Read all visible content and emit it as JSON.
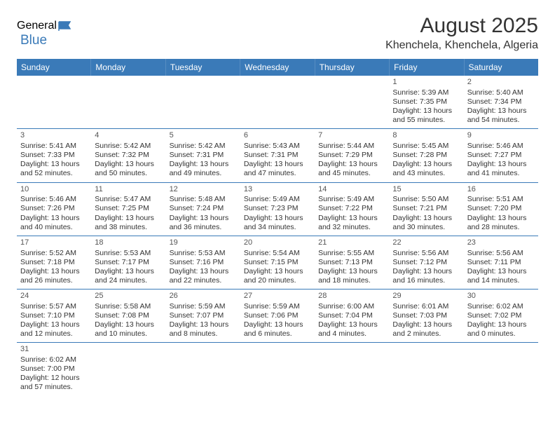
{
  "logo": {
    "part1": "General",
    "part2": "Blue"
  },
  "title": "August 2025",
  "location": "Khenchela, Khenchela, Algeria",
  "colors": {
    "header_bg": "#3a7ab8",
    "header_text": "#ffffff",
    "row_border": "#3a7ab8",
    "body_text": "#333333",
    "page_bg": "#ffffff"
  },
  "day_headers": [
    "Sunday",
    "Monday",
    "Tuesday",
    "Wednesday",
    "Thursday",
    "Friday",
    "Saturday"
  ],
  "weeks": [
    [
      {
        "empty": true
      },
      {
        "empty": true
      },
      {
        "empty": true
      },
      {
        "empty": true
      },
      {
        "empty": true
      },
      {
        "num": "1",
        "sunrise": "Sunrise: 5:39 AM",
        "sunset": "Sunset: 7:35 PM",
        "daylight1": "Daylight: 13 hours",
        "daylight2": "and 55 minutes."
      },
      {
        "num": "2",
        "sunrise": "Sunrise: 5:40 AM",
        "sunset": "Sunset: 7:34 PM",
        "daylight1": "Daylight: 13 hours",
        "daylight2": "and 54 minutes."
      }
    ],
    [
      {
        "num": "3",
        "sunrise": "Sunrise: 5:41 AM",
        "sunset": "Sunset: 7:33 PM",
        "daylight1": "Daylight: 13 hours",
        "daylight2": "and 52 minutes."
      },
      {
        "num": "4",
        "sunrise": "Sunrise: 5:42 AM",
        "sunset": "Sunset: 7:32 PM",
        "daylight1": "Daylight: 13 hours",
        "daylight2": "and 50 minutes."
      },
      {
        "num": "5",
        "sunrise": "Sunrise: 5:42 AM",
        "sunset": "Sunset: 7:31 PM",
        "daylight1": "Daylight: 13 hours",
        "daylight2": "and 49 minutes."
      },
      {
        "num": "6",
        "sunrise": "Sunrise: 5:43 AM",
        "sunset": "Sunset: 7:31 PM",
        "daylight1": "Daylight: 13 hours",
        "daylight2": "and 47 minutes."
      },
      {
        "num": "7",
        "sunrise": "Sunrise: 5:44 AM",
        "sunset": "Sunset: 7:29 PM",
        "daylight1": "Daylight: 13 hours",
        "daylight2": "and 45 minutes."
      },
      {
        "num": "8",
        "sunrise": "Sunrise: 5:45 AM",
        "sunset": "Sunset: 7:28 PM",
        "daylight1": "Daylight: 13 hours",
        "daylight2": "and 43 minutes."
      },
      {
        "num": "9",
        "sunrise": "Sunrise: 5:46 AM",
        "sunset": "Sunset: 7:27 PM",
        "daylight1": "Daylight: 13 hours",
        "daylight2": "and 41 minutes."
      }
    ],
    [
      {
        "num": "10",
        "sunrise": "Sunrise: 5:46 AM",
        "sunset": "Sunset: 7:26 PM",
        "daylight1": "Daylight: 13 hours",
        "daylight2": "and 40 minutes."
      },
      {
        "num": "11",
        "sunrise": "Sunrise: 5:47 AM",
        "sunset": "Sunset: 7:25 PM",
        "daylight1": "Daylight: 13 hours",
        "daylight2": "and 38 minutes."
      },
      {
        "num": "12",
        "sunrise": "Sunrise: 5:48 AM",
        "sunset": "Sunset: 7:24 PM",
        "daylight1": "Daylight: 13 hours",
        "daylight2": "and 36 minutes."
      },
      {
        "num": "13",
        "sunrise": "Sunrise: 5:49 AM",
        "sunset": "Sunset: 7:23 PM",
        "daylight1": "Daylight: 13 hours",
        "daylight2": "and 34 minutes."
      },
      {
        "num": "14",
        "sunrise": "Sunrise: 5:49 AM",
        "sunset": "Sunset: 7:22 PM",
        "daylight1": "Daylight: 13 hours",
        "daylight2": "and 32 minutes."
      },
      {
        "num": "15",
        "sunrise": "Sunrise: 5:50 AM",
        "sunset": "Sunset: 7:21 PM",
        "daylight1": "Daylight: 13 hours",
        "daylight2": "and 30 minutes."
      },
      {
        "num": "16",
        "sunrise": "Sunrise: 5:51 AM",
        "sunset": "Sunset: 7:20 PM",
        "daylight1": "Daylight: 13 hours",
        "daylight2": "and 28 minutes."
      }
    ],
    [
      {
        "num": "17",
        "sunrise": "Sunrise: 5:52 AM",
        "sunset": "Sunset: 7:18 PM",
        "daylight1": "Daylight: 13 hours",
        "daylight2": "and 26 minutes."
      },
      {
        "num": "18",
        "sunrise": "Sunrise: 5:53 AM",
        "sunset": "Sunset: 7:17 PM",
        "daylight1": "Daylight: 13 hours",
        "daylight2": "and 24 minutes."
      },
      {
        "num": "19",
        "sunrise": "Sunrise: 5:53 AM",
        "sunset": "Sunset: 7:16 PM",
        "daylight1": "Daylight: 13 hours",
        "daylight2": "and 22 minutes."
      },
      {
        "num": "20",
        "sunrise": "Sunrise: 5:54 AM",
        "sunset": "Sunset: 7:15 PM",
        "daylight1": "Daylight: 13 hours",
        "daylight2": "and 20 minutes."
      },
      {
        "num": "21",
        "sunrise": "Sunrise: 5:55 AM",
        "sunset": "Sunset: 7:13 PM",
        "daylight1": "Daylight: 13 hours",
        "daylight2": "and 18 minutes."
      },
      {
        "num": "22",
        "sunrise": "Sunrise: 5:56 AM",
        "sunset": "Sunset: 7:12 PM",
        "daylight1": "Daylight: 13 hours",
        "daylight2": "and 16 minutes."
      },
      {
        "num": "23",
        "sunrise": "Sunrise: 5:56 AM",
        "sunset": "Sunset: 7:11 PM",
        "daylight1": "Daylight: 13 hours",
        "daylight2": "and 14 minutes."
      }
    ],
    [
      {
        "num": "24",
        "sunrise": "Sunrise: 5:57 AM",
        "sunset": "Sunset: 7:10 PM",
        "daylight1": "Daylight: 13 hours",
        "daylight2": "and 12 minutes."
      },
      {
        "num": "25",
        "sunrise": "Sunrise: 5:58 AM",
        "sunset": "Sunset: 7:08 PM",
        "daylight1": "Daylight: 13 hours",
        "daylight2": "and 10 minutes."
      },
      {
        "num": "26",
        "sunrise": "Sunrise: 5:59 AM",
        "sunset": "Sunset: 7:07 PM",
        "daylight1": "Daylight: 13 hours",
        "daylight2": "and 8 minutes."
      },
      {
        "num": "27",
        "sunrise": "Sunrise: 5:59 AM",
        "sunset": "Sunset: 7:06 PM",
        "daylight1": "Daylight: 13 hours",
        "daylight2": "and 6 minutes."
      },
      {
        "num": "28",
        "sunrise": "Sunrise: 6:00 AM",
        "sunset": "Sunset: 7:04 PM",
        "daylight1": "Daylight: 13 hours",
        "daylight2": "and 4 minutes."
      },
      {
        "num": "29",
        "sunrise": "Sunrise: 6:01 AM",
        "sunset": "Sunset: 7:03 PM",
        "daylight1": "Daylight: 13 hours",
        "daylight2": "and 2 minutes."
      },
      {
        "num": "30",
        "sunrise": "Sunrise: 6:02 AM",
        "sunset": "Sunset: 7:02 PM",
        "daylight1": "Daylight: 13 hours",
        "daylight2": "and 0 minutes."
      }
    ],
    [
      {
        "num": "31",
        "sunrise": "Sunrise: 6:02 AM",
        "sunset": "Sunset: 7:00 PM",
        "daylight1": "Daylight: 12 hours",
        "daylight2": "and 57 minutes."
      },
      {
        "empty": true
      },
      {
        "empty": true
      },
      {
        "empty": true
      },
      {
        "empty": true
      },
      {
        "empty": true
      },
      {
        "empty": true
      }
    ]
  ]
}
